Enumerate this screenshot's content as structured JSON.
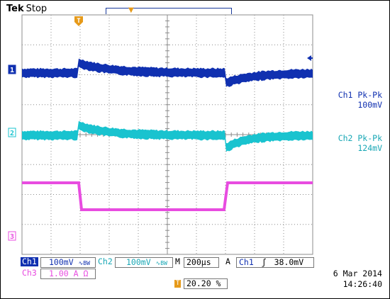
{
  "header": {
    "brand": "Tek",
    "state": "Stop"
  },
  "colors": {
    "ch1": "#1030b0",
    "ch2": "#19c3cf",
    "ch3": "#e84ce0",
    "trigger": "#e69a1a",
    "grid": "#8c8c8c"
  },
  "markers": {
    "trigger_position_glyph": "T",
    "ch1_label": "1",
    "ch2_label": "2",
    "ch3_label": "3",
    "trigger_level_icon": "arrow-left-icon"
  },
  "measurements": {
    "ch1_name": "Ch1 Pk-Pk",
    "ch1_value": "100mV",
    "ch2_name": "Ch2 Pk-Pk",
    "ch2_value": "124mV"
  },
  "status": {
    "ch1_tag": "Ch1",
    "ch1_scale": "100mV",
    "ch1_coupling": "∿BW",
    "ch2_tag": "Ch2",
    "ch2_scale": "100mV",
    "ch2_coupling": "∿BW",
    "ch3_tag": "Ch3",
    "ch3_scale": "1.00 A Ω",
    "timebase_tag": "M",
    "timebase": "200µs",
    "trigger_mode": "A",
    "trigger_source": "Ch1",
    "trigger_slope": "ʃ",
    "trigger_level": "38.0mV",
    "trigger_position_tag": "T",
    "trigger_position": "20.20 %",
    "date": "6 Mar  2014",
    "time": "14:26:40"
  }
}
